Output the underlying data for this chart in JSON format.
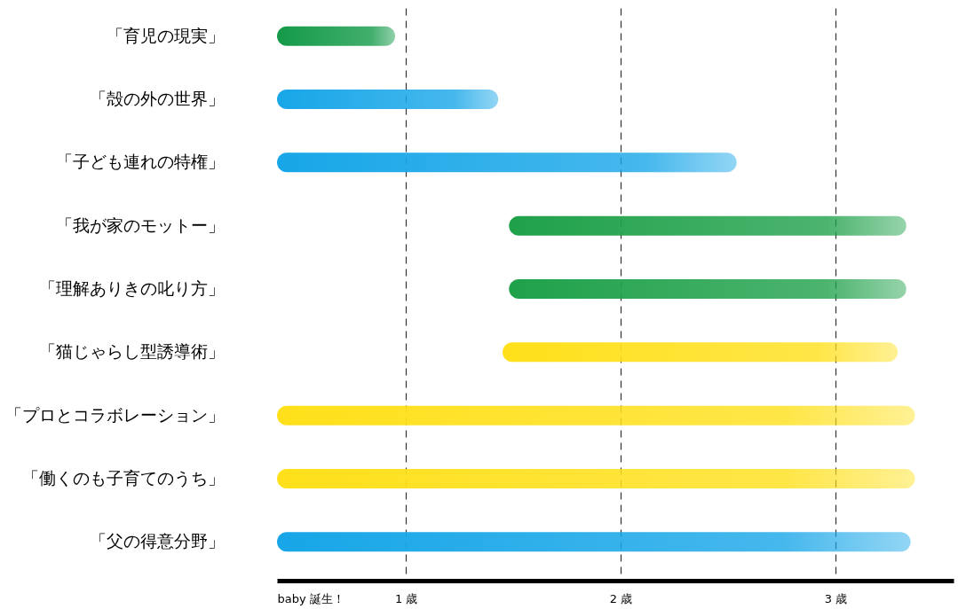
{
  "chart_data": {
    "type": "bar",
    "orientation": "horizontal",
    "categories": [
      "「育児の現実」",
      "「殻の外の世界」",
      "「子ども連れの特権」",
      "「我が家のモットー」",
      "「理解ありきの叱り方」",
      "「猫じゃらし型誘導術」",
      "「プロとコラボレーション」",
      "「働くのも子育てのうち」",
      "「父の得意分野」"
    ],
    "base": [
      0.4,
      0.4,
      0.4,
      1.48,
      1.48,
      1.45,
      0.4,
      0.4,
      0.4
    ],
    "values": [
      0.55,
      1.03,
      2.14,
      1.85,
      1.85,
      1.84,
      2.97,
      2.97,
      2.95
    ],
    "colors": [
      "#139a48",
      "#17a6e8",
      "#17a6e8",
      "#1fa14a",
      "#1fa14a",
      "#ffe01a",
      "#ffe01a",
      "#ffe01a",
      "#17a6e8"
    ],
    "xlim": [
      0.4,
      3.55
    ],
    "xticks": [
      {
        "value": 0.4,
        "label": "baby 誕生！"
      },
      {
        "value": 1,
        "label": "1 歳"
      },
      {
        "value": 2,
        "label": "2 歳"
      },
      {
        "value": 3,
        "label": "3 歳"
      }
    ],
    "grid": "x"
  }
}
